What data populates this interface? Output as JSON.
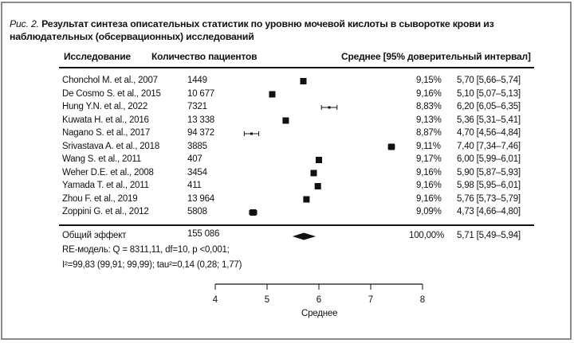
{
  "caption": {
    "prefix": "Рис. 2.",
    "text": "Результат синтеза описательных статистик по уровню мочевой кислоты в сыворотке крови из наблюдательных (обсервационных) исследований"
  },
  "headers": {
    "study": "Исследование",
    "patients": "Количество пациентов",
    "mean": "Среднее [95% доверительный интервал]"
  },
  "chart_data": {
    "type": "forest",
    "xlabel": "Среднее",
    "xlim": [
      4,
      8
    ],
    "xticks": [
      "4",
      "5",
      "6",
      "7",
      "8"
    ],
    "rows": [
      {
        "study": "Chonchol M. et al., 2007",
        "n": "1449",
        "weight": "9,15%",
        "ci_text": "5,70 [5,66–5,74]",
        "mean": 5.7,
        "lo": 5.66,
        "hi": 5.74,
        "w": 9.15
      },
      {
        "study": "De Cosmo S. et al., 2015",
        "n": "10 677",
        "weight": "9,16%",
        "ci_text": "5,10 [5,07–5,13]",
        "mean": 5.1,
        "lo": 5.07,
        "hi": 5.13,
        "w": 9.16
      },
      {
        "study": "Hung Y.N. et al., 2022",
        "n": "7321",
        "weight": "8,83%",
        "ci_text": "6,20 [6,05–6,35]",
        "mean": 6.2,
        "lo": 6.05,
        "hi": 6.35,
        "w": 8.83
      },
      {
        "study": "Kuwata H. et al., 2016",
        "n": "13 338",
        "weight": "9,13%",
        "ci_text": "5,36 [5,31–5,41]",
        "mean": 5.36,
        "lo": 5.31,
        "hi": 5.41,
        "w": 9.13
      },
      {
        "study": "Nagano S. et al., 2017",
        "n": "94 372",
        "weight": "8,87%",
        "ci_text": "4,70 [4,56–4,84]",
        "mean": 4.7,
        "lo": 4.56,
        "hi": 4.84,
        "w": 8.87
      },
      {
        "study": "Srivastava A. et al., 2018",
        "n": "3885",
        "weight": "9,11%",
        "ci_text": "7,40 [7,34–7,46]",
        "mean": 7.4,
        "lo": 7.34,
        "hi": 7.46,
        "w": 9.11
      },
      {
        "study": "Wang S. et al., 2011",
        "n": "407",
        "weight": "9,17%",
        "ci_text": "6,00 [5,99–6,01]",
        "mean": 6.0,
        "lo": 5.99,
        "hi": 6.01,
        "w": 9.17
      },
      {
        "study": "Weher D.E. et al., 2008",
        "n": "3454",
        "weight": "9,16%",
        "ci_text": "5,90 [5,87–5,93]",
        "mean": 5.9,
        "lo": 5.87,
        "hi": 5.93,
        "w": 9.16
      },
      {
        "study": "Yamada T. et al., 2011",
        "n": "411",
        "weight": "9,16%",
        "ci_text": "5,98 [5,95–6,01]",
        "mean": 5.98,
        "lo": 5.95,
        "hi": 6.01,
        "w": 9.16
      },
      {
        "study": "Zhou F. et al., 2019",
        "n": "13 964",
        "weight": "9,16%",
        "ci_text": "5,76 [5,73–5,79]",
        "mean": 5.76,
        "lo": 5.73,
        "hi": 5.79,
        "w": 9.16
      },
      {
        "study": "Zoppini G. et al., 2012",
        "n": "5808",
        "weight": "9,09%",
        "ci_text": "4,73 [4,66–4,80]",
        "mean": 4.73,
        "lo": 4.66,
        "hi": 4.8,
        "w": 9.09
      }
    ],
    "overall": {
      "label": "Общий эффект",
      "n": "155 086",
      "weight": "100,00%",
      "ci_text": "5,71 [5,49–5,94]",
      "mean": 5.71,
      "lo": 5.49,
      "hi": 5.94
    },
    "model_line1": "RE-модель: Q = 8311,11, df=10, p <0,001;",
    "model_line2": "I²=99,83 (99,91; 99,99); tau²=0,14 (0,28; 1,77)"
  }
}
